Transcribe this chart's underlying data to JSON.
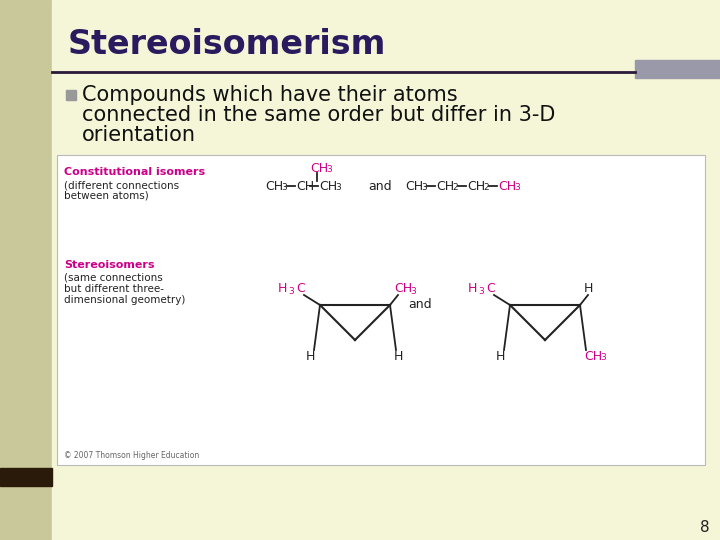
{
  "bg_color": "#f5f5d8",
  "left_bar_color": "#c8c89a",
  "title": "Stereoisomerism",
  "title_color": "#2a1a5e",
  "title_fontsize": 24,
  "bullet_square_color": "#999999",
  "bullet_fontsize": 15,
  "bullet_color": "#111111",
  "divider_color": "#2a1a3a",
  "right_bar_color": "#9999aa",
  "pink_color": "#cc0088",
  "black_color": "#222222",
  "box_bg": "#ffffff",
  "page_number": "8",
  "copyright_text": "© 2007 Thomson Higher Education"
}
